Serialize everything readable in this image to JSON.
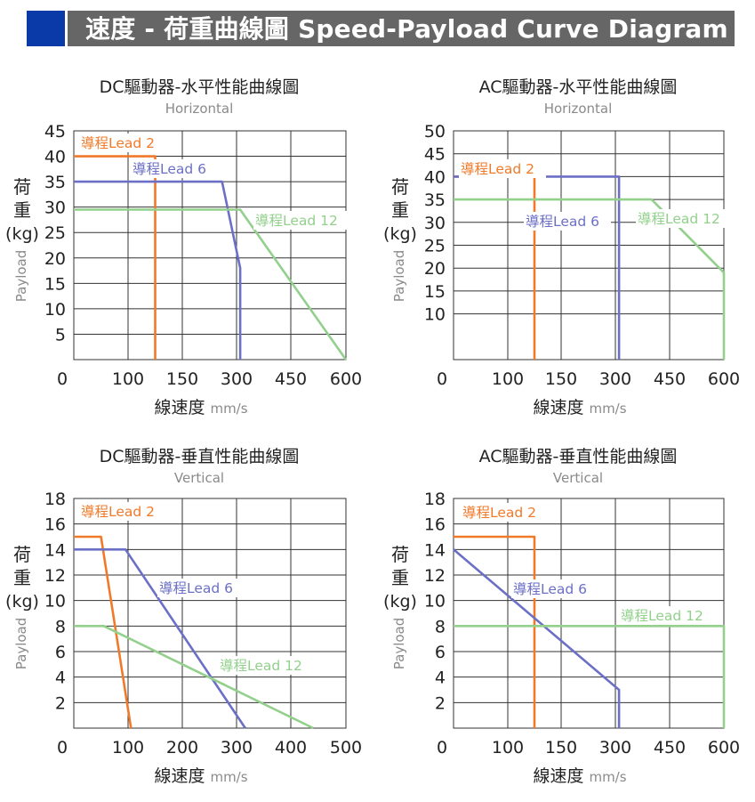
{
  "header": {
    "title": "速度 - 荷重曲線圖 Speed-Payload Curve Diagram"
  },
  "colors": {
    "lead2": "#f07a2a",
    "lead6": "#6b6fc6",
    "lead12": "#92d08c",
    "banner": "#666666",
    "accent": "#0a3aa8"
  },
  "chart_data": [
    {
      "type": "line",
      "title": "DC驅動器-水平性能曲線圖",
      "subtitle": "Horizontal",
      "xlabel": "線速度",
      "xunit": "mm/s",
      "ylabel_chars": [
        "荷",
        "重",
        "(kg)"
      ],
      "ylabel_en": "Payload",
      "xticks": [
        "0",
        "100",
        "150",
        "300",
        "450",
        "600"
      ],
      "yticks": [
        "5",
        "10",
        "15",
        "20",
        "25",
        "30",
        "35",
        "40",
        "45"
      ],
      "grid": true,
      "series": [
        {
          "name": "導程Lead 2",
          "color": "#f07a2a",
          "points": [
            [
              0,
              40
            ],
            [
              125,
              40
            ],
            [
              125,
              0
            ]
          ]
        },
        {
          "name": "導程Lead 6",
          "color": "#6b6fc6",
          "points": [
            [
              0,
              35
            ],
            [
              260,
              35
            ],
            [
              310,
              18
            ],
            [
              310,
              0
            ]
          ]
        },
        {
          "name": "導程Lead 12",
          "color": "#92d08c",
          "points": [
            [
              0,
              29.5
            ],
            [
              310,
              29.5
            ],
            [
              600,
              0
            ]
          ]
        }
      ]
    },
    {
      "type": "line",
      "title": "AC驅動器-水平性能曲線圖",
      "subtitle": "Horizontal",
      "xlabel": "線速度",
      "xunit": "mm/s",
      "ylabel_chars": [
        "荷",
        "重",
        "(kg)"
      ],
      "ylabel_en": "Payload",
      "xticks": [
        "0",
        "100",
        "150",
        "300",
        "450",
        "600"
      ],
      "yticks": [
        "10",
        "15",
        "20",
        "25",
        "30",
        "35",
        "40",
        "45",
        "50"
      ],
      "grid": true,
      "series": [
        {
          "name": "導程Lead 2",
          "color": "#f07a2a",
          "points": [
            [
              0,
              40
            ],
            [
              125,
              40
            ],
            [
              125,
              0
            ]
          ]
        },
        {
          "name": "導程Lead 6",
          "color": "#6b6fc6",
          "points": [
            [
              0,
              40
            ],
            [
              310,
              40
            ],
            [
              310,
              0
            ]
          ]
        },
        {
          "name": "導程Lead 12",
          "color": "#92d08c",
          "points": [
            [
              0,
              35
            ],
            [
              400,
              35
            ],
            [
              600,
              19
            ],
            [
              600,
              0
            ]
          ]
        }
      ]
    },
    {
      "type": "line",
      "title": "DC驅動器-垂直性能曲線圖",
      "subtitle": "Vertical",
      "xlabel": "線速度",
      "xunit": "mm/s",
      "ylabel_chars": [
        "荷",
        "重",
        "(kg)"
      ],
      "ylabel_en": "Payload",
      "xticks": [
        "0",
        "100",
        "200",
        "300",
        "400",
        "500"
      ],
      "yticks": [
        "2",
        "4",
        "6",
        "8",
        "10",
        "12",
        "14",
        "16",
        "18"
      ],
      "grid": true,
      "series": [
        {
          "name": "導程Lead 2",
          "color": "#f07a2a",
          "points": [
            [
              0,
              15
            ],
            [
              50,
              15
            ],
            [
              105,
              0
            ]
          ]
        },
        {
          "name": "導程Lead 6",
          "color": "#6b6fc6",
          "points": [
            [
              0,
              14
            ],
            [
              95,
              14
            ],
            [
              315,
              0
            ]
          ]
        },
        {
          "name": "導程Lead 12",
          "color": "#92d08c",
          "points": [
            [
              0,
              8
            ],
            [
              55,
              8
            ],
            [
              440,
              0
            ]
          ]
        }
      ]
    },
    {
      "type": "line",
      "title": "AC驅動器-垂直性能曲線圖",
      "subtitle": "Vertical",
      "xlabel": "線速度",
      "xunit": "mm/s",
      "ylabel_chars": [
        "荷",
        "重",
        "(kg)"
      ],
      "ylabel_en": "Payload",
      "xticks": [
        "0",
        "100",
        "150",
        "300",
        "450",
        "600"
      ],
      "yticks": [
        "2",
        "4",
        "6",
        "8",
        "10",
        "12",
        "14",
        "16",
        "18"
      ],
      "grid": true,
      "series": [
        {
          "name": "導程Lead 2",
          "color": "#f07a2a",
          "points": [
            [
              0,
              15
            ],
            [
              125,
              15
            ],
            [
              125,
              0
            ]
          ]
        },
        {
          "name": "導程Lead 6",
          "color": "#6b6fc6",
          "points": [
            [
              0,
              14
            ],
            [
              310,
              3
            ],
            [
              310,
              0
            ]
          ]
        },
        {
          "name": "導程Lead 12",
          "color": "#92d08c",
          "points": [
            [
              0,
              8
            ],
            [
              600,
              8
            ],
            [
              600,
              0
            ]
          ]
        }
      ]
    }
  ]
}
